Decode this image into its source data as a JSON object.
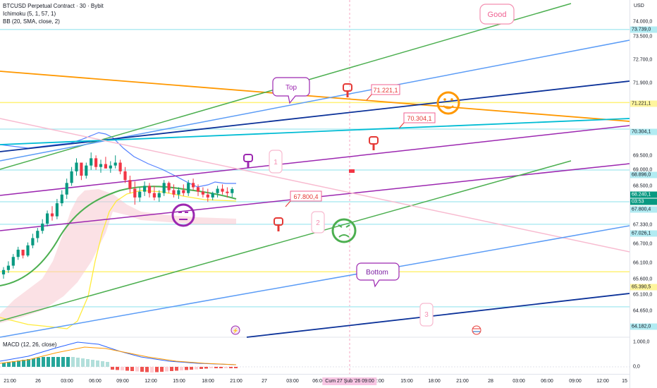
{
  "chart": {
    "title": "BTCUSD Perpetual Contract · 30 · Bybit",
    "indicators": [
      "Ichimoku (5, 1, 57, 1)",
      "BB (20, SMA, close, 2)"
    ],
    "macd_label": "MACD (12, 26, close)",
    "currency": "USD",
    "price_labels": [
      "74.000,0",
      "73.500,0",
      "72.700,0",
      "71.900,0",
      "69.500,0",
      "69.000,0",
      "68.500,0",
      "67.330,0",
      "66.700,0",
      "66.100,0",
      "65.600,0",
      "65.100,0",
      "64.650,0",
      "1.000,0",
      "0,0"
    ],
    "tags": {
      "good": "Good",
      "top": "Top",
      "bottom": "Bottom",
      "level_71221": "71.221,1",
      "level_70304": "70.304,1",
      "level_67800": "67.800,4",
      "num_1": "1",
      "num_2": "2",
      "num_3": "3"
    },
    "price_tags": {
      "p73739": "73.739,0",
      "p71221": "71.221,1",
      "p70304": "70.304,1",
      "p68896": "68.896,0",
      "p68240": "68.240,1",
      "countdown": "03:53",
      "p67800": "67.800,4",
      "p67026": "67.026,1",
      "p65390": "65.390,5",
      "p64182": "64.182,0"
    },
    "time_labels": [
      "21:00",
      "26",
      "03:00",
      "06:00",
      "09:00",
      "12:00",
      "15:00",
      "18:00",
      "21:00",
      "27",
      "03:00",
      "06:00",
      "12:00",
      "15:00",
      "18:00",
      "21:00",
      "28",
      "03:00",
      "06:00",
      "09:00",
      "12:00",
      "15"
    ],
    "time_cursor": "Cum 27 Şub '26   09:00",
    "colors": {
      "up": "#089981",
      "down": "#f23645",
      "green_line": "#4caf50",
      "blue_line": "#5b9cf6",
      "navy_line": "#0c3299",
      "orange_line": "#ff9800",
      "purple_line": "#9c27b0",
      "cyan_line": "#00bcd4",
      "pink_line": "#f8bbd0"
    }
  },
  "chart_data": {
    "type": "candlestick",
    "title": "BTCUSD Perpetual Contract · 30 · Bybit",
    "price_range": [
      64000,
      74600
    ],
    "annotated_levels": [
      73739.0,
      71221.1,
      70304.1,
      68896.0,
      68240.1,
      67800.4,
      67026.1,
      65390.5,
      64182.0
    ],
    "last_price": 68240.1,
    "candles_ohlc": [
      [
        65300,
        65550,
        65150,
        65450
      ],
      [
        65450,
        65750,
        65350,
        65600
      ],
      [
        65600,
        66000,
        65500,
        65900
      ],
      [
        65900,
        66250,
        65800,
        66150
      ],
      [
        66150,
        66100,
        65850,
        65950
      ],
      [
        65950,
        66400,
        65900,
        66300
      ],
      [
        66300,
        66700,
        66200,
        66550
      ],
      [
        66550,
        66900,
        66400,
        66800
      ],
      [
        66800,
        67200,
        66700,
        67050
      ],
      [
        67050,
        67500,
        66950,
        67400
      ],
      [
        67400,
        67650,
        67150,
        67300
      ],
      [
        67300,
        67900,
        67200,
        67750
      ],
      [
        67750,
        68200,
        67650,
        68050
      ],
      [
        68050,
        68600,
        67900,
        68450
      ],
      [
        68450,
        69000,
        68350,
        68850
      ],
      [
        68850,
        69300,
        68700,
        69150
      ],
      [
        69150,
        69050,
        68550,
        68700
      ],
      [
        68700,
        69150,
        68600,
        69050
      ],
      [
        69050,
        69500,
        68900,
        69300
      ],
      [
        69300,
        69400,
        68900,
        69000
      ],
      [
        69000,
        69250,
        68800,
        69100
      ],
      [
        69100,
        69350,
        68950,
        68950
      ],
      [
        68950,
        69200,
        68800,
        69050
      ],
      [
        69050,
        69400,
        68950,
        69150
      ],
      [
        69150,
        69250,
        68750,
        68850
      ],
      [
        68850,
        69000,
        68450,
        68550
      ],
      [
        68550,
        68700,
        68100,
        68250
      ],
      [
        68250,
        68500,
        67700,
        67950
      ],
      [
        67950,
        68300,
        67800,
        68150
      ],
      [
        68150,
        68500,
        68000,
        68350
      ],
      [
        68350,
        68450,
        67950,
        68100
      ],
      [
        68100,
        68350,
        67850,
        67950
      ],
      [
        67950,
        68200,
        67800,
        68100
      ],
      [
        68100,
        68550,
        68000,
        68450
      ],
      [
        68450,
        68500,
        68100,
        68200
      ],
      [
        68200,
        68400,
        67950,
        68050
      ],
      [
        68050,
        68300,
        67900,
        68200
      ],
      [
        68200,
        68400,
        68000,
        68100
      ],
      [
        68100,
        68550,
        68000,
        68450
      ],
      [
        68450,
        68600,
        68200,
        68300
      ],
      [
        68300,
        68400,
        68000,
        68150
      ],
      [
        68150,
        68300,
        67950,
        68050
      ],
      [
        68050,
        68250,
        67800,
        67950
      ],
      [
        67950,
        68150,
        67850,
        68100
      ],
      [
        68100,
        68350,
        67950,
        68250
      ],
      [
        68250,
        68400,
        68050,
        68150
      ],
      [
        68150,
        68300,
        67950,
        68100
      ],
      [
        68100,
        68300,
        67950,
        68240
      ]
    ]
  }
}
